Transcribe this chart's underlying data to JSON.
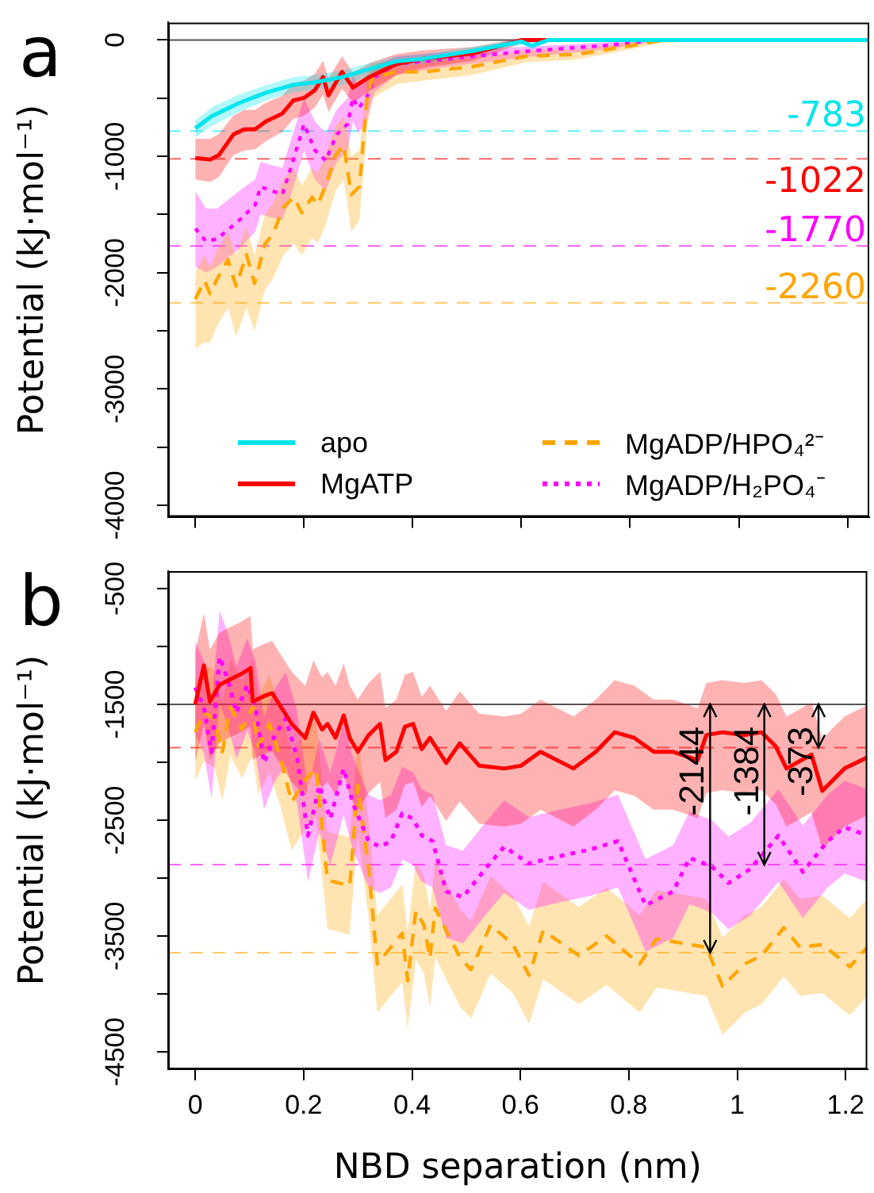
{
  "chart_data": [
    {
      "type": "line",
      "ylabel": "Potential (kJ·mol⁻¹)",
      "annotations": [
        "a"
      ],
      "xlim": [
        -0.05,
        1.24
      ],
      "xticks": [
        0,
        0.2,
        0.4,
        0.6,
        0.8,
        1,
        1.2
      ],
      "ylim": [
        -4100,
        150
      ],
      "yticks": [
        0,
        {
          "value": -500,
          "label": null
        },
        -1000,
        {
          "value": -1500,
          "label": null
        },
        -2000,
        {
          "value": -2500,
          "label": null
        },
        -3000,
        {
          "value": -3500,
          "label": null
        },
        -4000
      ],
      "tick_labels": "y",
      "grid": false,
      "legend": "bottom",
      "ref_lines": [
        {
          "axis": "y",
          "value": 0,
          "color": "#555555",
          "line_style": "solid"
        },
        {
          "axis": "y",
          "value": -783,
          "label": "-783",
          "color": "#00e5ee",
          "line_style": "dashed"
        },
        {
          "axis": "y",
          "value": -1022,
          "label": "-1022",
          "color": "#ff0000",
          "line_style": "dashed"
        },
        {
          "axis": "y",
          "value": -1770,
          "label": "-1770",
          "color": "#ff00ff",
          "line_style": "dashed"
        },
        {
          "axis": "y",
          "value": -2260,
          "label": "-2260",
          "color": "#ffa500",
          "line_style": "dashed"
        }
      ],
      "series": [
        {
          "name": "apo",
          "color": "#00e5ee",
          "line_style": "solid",
          "x": [
            0,
            0.03,
            0.08,
            0.13,
            0.18,
            0.22,
            0.27,
            0.32,
            0.37,
            0.42,
            0.51,
            0.6,
            0.62,
            0.65,
            0.8,
            1.0,
            1.24
          ],
          "values": [
            -760,
            -655,
            -543,
            -453,
            -386,
            -364,
            -319,
            -251,
            -184,
            -162,
            -94,
            -13,
            -50,
            0,
            0,
            0,
            0
          ],
          "lower": [
            -840,
            -740,
            -620,
            -520,
            -450,
            -430,
            -390,
            -310,
            -230,
            -200,
            -130,
            -40,
            -80,
            -10,
            -10,
            -10,
            -10
          ],
          "upper": [
            -690,
            -580,
            -470,
            -390,
            -320,
            -300,
            -260,
            -200,
            -140,
            -120,
            -60,
            10,
            -20,
            10,
            10,
            10,
            10
          ]
        },
        {
          "name": "MgATP",
          "color": "#ff0000",
          "line_style": "solid",
          "x": [
            0,
            0.027,
            0.043,
            0.07,
            0.09,
            0.11,
            0.13,
            0.16,
            0.18,
            0.2,
            0.22,
            0.235,
            0.245,
            0.27,
            0.29,
            0.32,
            0.37,
            0.42,
            0.51,
            0.59,
            0.6,
            0.8,
            1.0,
            1.24
          ],
          "values": [
            -1015,
            -1028,
            -992,
            -813,
            -768,
            -768,
            -700,
            -633,
            -521,
            -498,
            -431,
            -319,
            -476,
            -274,
            -409,
            -319,
            -207,
            -162,
            -117,
            -13,
            0,
            0,
            0,
            0
          ],
          "lower": [
            -1200,
            -1220,
            -1180,
            -990,
            -950,
            -940,
            -870,
            -790,
            -680,
            -650,
            -580,
            -470,
            -620,
            -420,
            -540,
            -440,
            -300,
            -240,
            -180,
            -50,
            -20,
            -10,
            -10,
            -10
          ],
          "upper": [
            -850,
            -850,
            -810,
            -650,
            -600,
            -600,
            -540,
            -480,
            -370,
            -350,
            -290,
            -180,
            -330,
            -140,
            -280,
            -200,
            -120,
            -90,
            -60,
            10,
            10,
            10,
            10,
            10
          ]
        },
        {
          "name": "MgADP/HPO₄²⁻",
          "color": "#ffa500",
          "line_style": "dashed",
          "x": [
            0,
            0.017,
            0.027,
            0.041,
            0.06,
            0.075,
            0.094,
            0.109,
            0.128,
            0.143,
            0.162,
            0.181,
            0.196,
            0.215,
            0.225,
            0.239,
            0.258,
            0.273,
            0.287,
            0.302,
            0.316,
            0.326,
            0.37,
            0.42,
            0.51,
            0.61,
            0.7,
            0.8,
            0.85,
            0.9,
            1.0,
            1.24
          ],
          "values": [
            -2227,
            -2070,
            -2182,
            -2047,
            -1890,
            -2115,
            -1845,
            -2092,
            -1755,
            -1666,
            -1441,
            -1351,
            -1486,
            -1351,
            -1419,
            -1262,
            -992,
            -902,
            -1329,
            -1262,
            -498,
            -319,
            -274,
            -274,
            -229,
            -139,
            -125,
            -50,
            -10,
            0,
            0,
            0
          ],
          "lower": [
            -2650,
            -2600,
            -2600,
            -2450,
            -2300,
            -2550,
            -2300,
            -2500,
            -2150,
            -2050,
            -1850,
            -1750,
            -1850,
            -1700,
            -1750,
            -1600,
            -1300,
            -1200,
            -1650,
            -1550,
            -750,
            -500,
            -380,
            -350,
            -300,
            -190,
            -170,
            -80,
            -30,
            -10,
            -10,
            -10
          ],
          "upper": [
            -2000,
            -1850,
            -1950,
            -1800,
            -1650,
            -1850,
            -1600,
            -1850,
            -1500,
            -1400,
            -1200,
            -1100,
            -1250,
            -1100,
            -1150,
            -1000,
            -750,
            -650,
            -1000,
            -950,
            -300,
            -200,
            -180,
            -180,
            -160,
            -90,
            -80,
            -20,
            10,
            10,
            10,
            10
          ]
        },
        {
          "name": "MgADP/H₂PO₄⁻",
          "color": "#ff00ff",
          "line_style": "dotted",
          "x": [
            0,
            0.02,
            0.04,
            0.08,
            0.11,
            0.12,
            0.16,
            0.18,
            0.2,
            0.22,
            0.24,
            0.26,
            0.28,
            0.29,
            0.3,
            0.315,
            0.33,
            0.37,
            0.45,
            0.6,
            0.76,
            0.85,
            1.0,
            1.24
          ],
          "values": [
            -1621,
            -1733,
            -1710,
            -1554,
            -1419,
            -1262,
            -1329,
            -1037,
            -723,
            -947,
            -1037,
            -813,
            -723,
            -498,
            -588,
            -498,
            -319,
            -207,
            -170,
            -100,
            -46,
            0,
            0,
            0
          ],
          "lower": [
            -1950,
            -2000,
            -1950,
            -1800,
            -1650,
            -1500,
            -1550,
            -1280,
            -950,
            -1200,
            -1300,
            -1050,
            -950,
            -700,
            -800,
            -700,
            -450,
            -300,
            -240,
            -150,
            -80,
            -10,
            -10,
            -10
          ],
          "upper": [
            -1300,
            -1450,
            -1450,
            -1300,
            -1200,
            -1050,
            -1100,
            -800,
            -500,
            -700,
            -800,
            -600,
            -500,
            -300,
            -400,
            -350,
            -220,
            -140,
            -110,
            -60,
            -20,
            10,
            10,
            10
          ]
        }
      ]
    },
    {
      "type": "line",
      "xlabel": "NBD separation (nm)",
      "ylabel": "Potential (kJ·mol⁻¹)",
      "annotations": [
        "b",
        {
          "text": "-2144",
          "x": 0.95,
          "y": -3644
        },
        {
          "text": "-1384",
          "x": 1.05,
          "y": -2884
        },
        {
          "text": "-373",
          "x": 1.15,
          "y": -1873
        }
      ],
      "xlim": [
        -0.05,
        1.24
      ],
      "xticks": [
        0,
        0.2,
        0.4,
        0.6,
        0.8,
        1,
        1.2
      ],
      "ylim": [
        -4650,
        -350
      ],
      "yticks": [
        -500,
        {
          "value": -1000,
          "label": null
        },
        -1500,
        {
          "value": -2000,
          "label": null
        },
        -2500,
        {
          "value": -3000,
          "label": null
        },
        -3500,
        {
          "value": -4000,
          "label": null
        },
        -4500
      ],
      "grid": false,
      "ref_lines": [
        {
          "axis": "y",
          "value": -1500,
          "color": "#555555",
          "line_style": "solid"
        },
        {
          "axis": "y",
          "value": -1873,
          "color": "#ff0000",
          "line_style": "dashed"
        },
        {
          "axis": "y",
          "value": -2884,
          "color": "#ff00ff",
          "line_style": "dashed"
        },
        {
          "axis": "y",
          "value": -3644,
          "color": "#ffa500",
          "line_style": "dashed"
        }
      ],
      "series": [
        {
          "color": "#ff0000",
          "line_style": "solid",
          "x": [
            0,
            0.016,
            0.027,
            0.045,
            0.065,
            0.086,
            0.102,
            0.106,
            0.127,
            0.142,
            0.178,
            0.203,
            0.218,
            0.234,
            0.244,
            0.259,
            0.274,
            0.285,
            0.3,
            0.32,
            0.341,
            0.351,
            0.371,
            0.387,
            0.402,
            0.418,
            0.433,
            0.463,
            0.488,
            0.524,
            0.57,
            0.601,
            0.637,
            0.698,
            0.739,
            0.774,
            0.81,
            0.846,
            0.882,
            0.927,
            0.943,
            0.973,
            1.014,
            1.045,
            1.071,
            1.091,
            1.137,
            1.157,
            1.198,
            1.24
          ],
          "values": [
            -1500,
            -1163,
            -1476,
            -1331,
            -1283,
            -1235,
            -1187,
            -1476,
            -1428,
            -1404,
            -1669,
            -1789,
            -1572,
            -1717,
            -1669,
            -1789,
            -1596,
            -1789,
            -1910,
            -1765,
            -1669,
            -1982,
            -1910,
            -1693,
            -1669,
            -1886,
            -1789,
            -2006,
            -1837,
            -2030,
            -2054,
            -2030,
            -1910,
            -2054,
            -1910,
            -1741,
            -1789,
            -1910,
            -1910,
            -1982,
            -1765,
            -1741,
            -1765,
            -1741,
            -1862,
            -2054,
            -1934,
            -2247,
            -2054,
            -1958
          ],
          "upper": [
            -1050,
            -713,
            -1026,
            -881,
            -833,
            -785,
            -737,
            -1026,
            -978,
            -954,
            -1219,
            -1339,
            -1122,
            -1267,
            -1219,
            -1339,
            -1146,
            -1339,
            -1460,
            -1315,
            -1219,
            -1532,
            -1460,
            -1243,
            -1219,
            -1436,
            -1339,
            -1556,
            -1387,
            -1580,
            -1604,
            -1580,
            -1460,
            -1604,
            -1460,
            -1291,
            -1339,
            -1460,
            -1460,
            -1532,
            -1315,
            -1291,
            -1315,
            -1291,
            -1412,
            -1604,
            -1484,
            -1797,
            -1604,
            -1508
          ],
          "lower": [
            -2000,
            -1663,
            -1976,
            -1831,
            -1783,
            -1735,
            -1687,
            -1976,
            -1928,
            -1904,
            -2169,
            -2289,
            -2072,
            -2217,
            -2169,
            -2289,
            -2096,
            -2289,
            -2410,
            -2265,
            -2169,
            -2482,
            -2410,
            -2193,
            -2169,
            -2386,
            -2289,
            -2506,
            -2337,
            -2530,
            -2554,
            -2530,
            -2410,
            -2554,
            -2410,
            -2241,
            -2289,
            -2410,
            -2410,
            -2482,
            -2265,
            -2241,
            -2265,
            -2241,
            -2362,
            -2554,
            -2434,
            -2747,
            -2554,
            -2458
          ]
        },
        {
          "color": "#ff00ff",
          "line_style": "dotted",
          "x": [
            0,
            0.016,
            0.03,
            0.045,
            0.06,
            0.076,
            0.096,
            0.111,
            0.127,
            0.147,
            0.167,
            0.188,
            0.208,
            0.229,
            0.249,
            0.274,
            0.29,
            0.32,
            0.341,
            0.361,
            0.382,
            0.402,
            0.418,
            0.438,
            0.463,
            0.494,
            0.535,
            0.57,
            0.616,
            0.657,
            0.729,
            0.78,
            0.831,
            0.882,
            0.912,
            0.953,
            0.984,
            1.024,
            1.076,
            1.121,
            1.167,
            1.198,
            1.24
          ],
          "values": [
            -1355,
            -1524,
            -1910,
            -1090,
            -1283,
            -1572,
            -1331,
            -1524,
            -2006,
            -1765,
            -1621,
            -1958,
            -2633,
            -2199,
            -2488,
            -2054,
            -2344,
            -2681,
            -2729,
            -2681,
            -2440,
            -2488,
            -2633,
            -2681,
            -3115,
            -3163,
            -2922,
            -2729,
            -2874,
            -2826,
            -2753,
            -2681,
            -3235,
            -3115,
            -2826,
            -2898,
            -3042,
            -2922,
            -2633,
            -2946,
            -2681,
            -2560,
            -2633
          ],
          "upper": [
            -955,
            -1124,
            -1510,
            -690,
            -883,
            -1172,
            -931,
            -1124,
            -1606,
            -1365,
            -1221,
            -1558,
            -2233,
            -1799,
            -2088,
            -1654,
            -1944,
            -2281,
            -2329,
            -2281,
            -2040,
            -2088,
            -2233,
            -2281,
            -2715,
            -2763,
            -2522,
            -2329,
            -2474,
            -2426,
            -2353,
            -2281,
            -2835,
            -2715,
            -2426,
            -2498,
            -2642,
            -2522,
            -2233,
            -2546,
            -2281,
            -2160,
            -2233
          ],
          "lower": [
            -1755,
            -1924,
            -2310,
            -1490,
            -1683,
            -1972,
            -1731,
            -1924,
            -2406,
            -2165,
            -2021,
            -2358,
            -3033,
            -2599,
            -2888,
            -2454,
            -2744,
            -3081,
            -3129,
            -3081,
            -2840,
            -2888,
            -3033,
            -3081,
            -3515,
            -3563,
            -3322,
            -3129,
            -3274,
            -3226,
            -3153,
            -3081,
            -3635,
            -3515,
            -3226,
            -3298,
            -3442,
            -3322,
            -3033,
            -3346,
            -3081,
            -2960,
            -3033
          ]
        },
        {
          "color": "#ffa500",
          "line_style": "dashed",
          "x": [
            0,
            0.016,
            0.035,
            0.05,
            0.065,
            0.086,
            0.106,
            0.116,
            0.137,
            0.157,
            0.178,
            0.203,
            0.223,
            0.244,
            0.285,
            0.3,
            0.32,
            0.336,
            0.361,
            0.382,
            0.392,
            0.407,
            0.422,
            0.433,
            0.443,
            0.463,
            0.489,
            0.509,
            0.545,
            0.586,
            0.616,
            0.642,
            0.708,
            0.759,
            0.82,
            0.851,
            0.912,
            0.943,
            0.973,
            1.014,
            1.045,
            1.086,
            1.116,
            1.157,
            1.208,
            1.24
          ],
          "values": [
            -1741,
            -1572,
            -1621,
            -1910,
            -1524,
            -1717,
            -1524,
            -1862,
            -1669,
            -1958,
            -2344,
            -2151,
            -2054,
            -3018,
            -3067,
            -2199,
            -2922,
            -3741,
            -3597,
            -3476,
            -3886,
            -3283,
            -3404,
            -3693,
            -3259,
            -3452,
            -3693,
            -3790,
            -3404,
            -3573,
            -3838,
            -3452,
            -3669,
            -3500,
            -3741,
            -3524,
            -3573,
            -3597,
            -3934,
            -3741,
            -3669,
            -3428,
            -3597,
            -3573,
            -3765,
            -3597
          ],
          "upper": [
            -1321,
            -1152,
            -1201,
            -1490,
            -1104,
            -1297,
            -1104,
            -1442,
            -1249,
            -1538,
            -1924,
            -1731,
            -1634,
            -2598,
            -2647,
            -1779,
            -2502,
            -3321,
            -3177,
            -3056,
            -3466,
            -2863,
            -2984,
            -3273,
            -2839,
            -3032,
            -3273,
            -3370,
            -2984,
            -3153,
            -3418,
            -3032,
            -3249,
            -3080,
            -3321,
            -3104,
            -3153,
            -3177,
            -3514,
            -3321,
            -3249,
            -3008,
            -3177,
            -3153,
            -3345,
            -3177
          ],
          "lower": [
            -2161,
            -1992,
            -2041,
            -2330,
            -1944,
            -2137,
            -1944,
            -2282,
            -2089,
            -2378,
            -2764,
            -2571,
            -2474,
            -3438,
            -3487,
            -2619,
            -3342,
            -4161,
            -4017,
            -3896,
            -4306,
            -3703,
            -3824,
            -4113,
            -3679,
            -3872,
            -4113,
            -4210,
            -3824,
            -3993,
            -4258,
            -3872,
            -4089,
            -3920,
            -4161,
            -3944,
            -3993,
            -4017,
            -4354,
            -4161,
            -4089,
            -3848,
            -4017,
            -3993,
            -4185,
            -4017
          ]
        }
      ]
    }
  ]
}
